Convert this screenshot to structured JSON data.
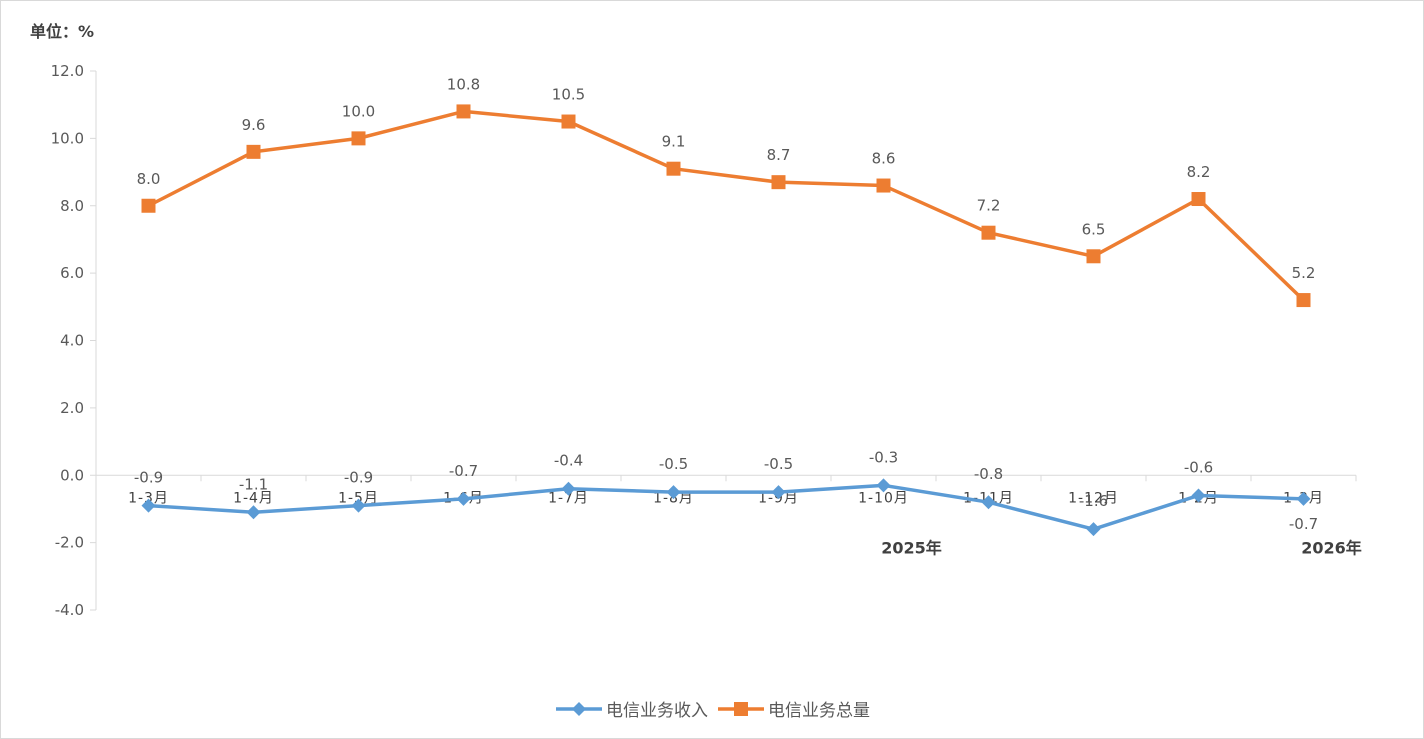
{
  "unit_label": "单位：%",
  "chart_data": {
    "type": "line",
    "categories": [
      "1-3月",
      "1-4月",
      "1-5月",
      "1-6月",
      "1-7月",
      "1-8月",
      "1-9月",
      "1-10月",
      "1-11月",
      "1-12月",
      "1-2月",
      "1-3月"
    ],
    "year_labels": [
      {
        "text": "2025年",
        "category_index": 7
      },
      {
        "text": "2026年",
        "category_index": 11
      }
    ],
    "series": [
      {
        "name": "电信业务收入",
        "color": "#5b9bd5",
        "marker": "diamond",
        "values": [
          -0.9,
          -1.1,
          -0.9,
          -0.7,
          -0.4,
          -0.5,
          -0.5,
          -0.3,
          -0.8,
          -1.6,
          -0.6,
          -0.7
        ]
      },
      {
        "name": "电信业务总量",
        "color": "#ed7d31",
        "marker": "square",
        "values": [
          8.0,
          9.6,
          10.0,
          10.8,
          10.5,
          9.1,
          8.7,
          8.6,
          7.2,
          6.5,
          8.2,
          5.2
        ]
      }
    ],
    "ylim": [
      -4.0,
      12.0
    ],
    "yticks": [
      12.0,
      10.0,
      8.0,
      6.0,
      4.0,
      2.0,
      0.0,
      -2.0,
      -4.0
    ],
    "grid": false,
    "legend": "bottom"
  }
}
